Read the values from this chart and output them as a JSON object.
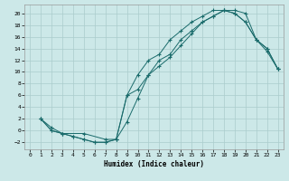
{
  "title": "",
  "xlabel": "Humidex (Indice chaleur)",
  "ylabel": "",
  "bg_color": "#cce8e8",
  "grid_color": "#aacccc",
  "line_color": "#1a6b6b",
  "xlim": [
    -0.5,
    23.5
  ],
  "ylim": [
    -3.2,
    21.5
  ],
  "xticks": [
    0,
    1,
    2,
    3,
    4,
    5,
    6,
    7,
    8,
    9,
    10,
    11,
    12,
    13,
    14,
    15,
    16,
    17,
    18,
    19,
    20,
    21,
    22,
    23
  ],
  "yticks": [
    -2,
    0,
    2,
    4,
    6,
    8,
    10,
    12,
    14,
    16,
    18,
    20
  ],
  "line1_x": [
    1,
    2,
    3,
    4,
    5,
    6,
    7,
    8,
    9,
    10,
    11,
    12,
    13,
    14,
    15,
    16,
    17,
    18,
    19,
    20,
    21,
    22,
    23
  ],
  "line1_y": [
    2,
    0,
    -0.5,
    -1,
    -1.5,
    -2,
    -2,
    -1.5,
    1.5,
    5.5,
    9.5,
    12,
    13,
    15.5,
    17,
    18.5,
    19.5,
    20.5,
    20.5,
    20,
    15.5,
    14,
    10.5
  ],
  "line2_x": [
    1,
    2,
    3,
    4,
    5,
    6,
    7,
    8,
    9,
    10,
    11,
    12,
    13,
    14,
    15,
    16,
    17,
    18,
    19,
    20,
    21,
    22,
    23
  ],
  "line2_y": [
    2,
    0,
    -0.5,
    -1,
    -1.5,
    -2,
    -2,
    -1.5,
    6,
    9.5,
    12,
    13,
    15.5,
    17,
    18.5,
    19.5,
    20.5,
    20.5,
    20,
    18.5,
    15.5,
    14,
    10.5
  ],
  "line3_x": [
    1,
    2,
    3,
    5,
    7,
    8,
    9,
    10,
    11,
    12,
    13,
    14,
    15,
    16,
    17,
    18,
    19,
    20,
    21,
    22,
    23
  ],
  "line3_y": [
    2,
    0.5,
    -0.5,
    -0.5,
    -1.5,
    -1.5,
    6,
    7,
    9.5,
    11,
    12.5,
    14.5,
    16.5,
    18.5,
    19.5,
    20.5,
    20,
    18.5,
    15.5,
    13.5,
    10.5
  ]
}
